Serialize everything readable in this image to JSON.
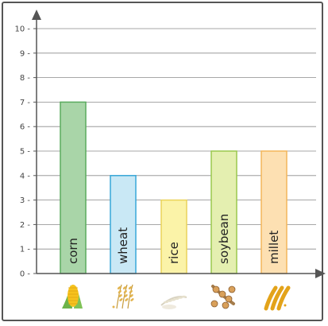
{
  "chart_data": {
    "type": "bar",
    "title": "",
    "xlabel": "",
    "ylabel": "",
    "ylim": [
      0,
      10
    ],
    "yticks": [
      0,
      1,
      2,
      3,
      4,
      5,
      6,
      7,
      8,
      9,
      10
    ],
    "grid": true,
    "categories": [
      "corn",
      "wheat",
      "rice",
      "soybean",
      "millet"
    ],
    "values": [
      7,
      4,
      3,
      5,
      5
    ],
    "bar_fill_colors": [
      "#a9d5a8",
      "#c9e8f5",
      "#fbf3a8",
      "#e4efb0",
      "#fde0b2"
    ],
    "bar_stroke_colors": [
      "#5aab5e",
      "#37a7d8",
      "#ead35a",
      "#9ac84e",
      "#f3b65a"
    ],
    "icons": [
      "corn-icon",
      "wheat-icon",
      "rice-icon",
      "soybean-icon",
      "millet-icon"
    ]
  }
}
